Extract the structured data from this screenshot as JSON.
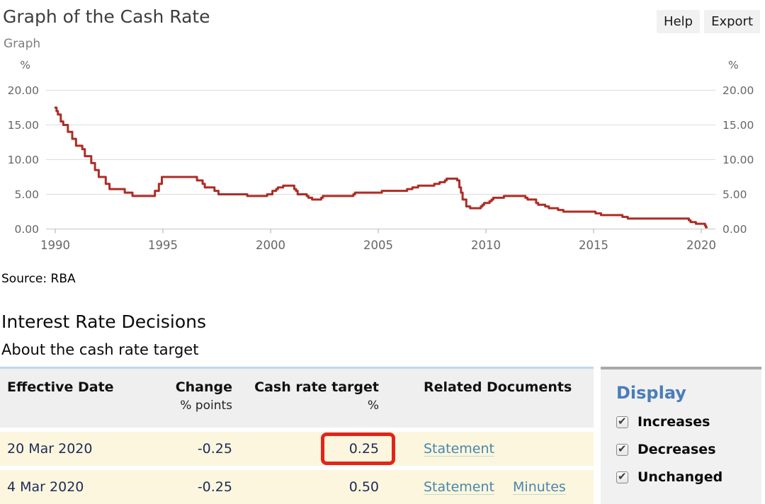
{
  "page": {
    "title": "Graph of the Cash Rate"
  },
  "toolbar": {
    "help_label": "Help",
    "export_label": "Export"
  },
  "graph_section": {
    "label": "Graph"
  },
  "chart_data": {
    "type": "line",
    "title": "Graph of the Cash Rate",
    "ylabel": "%",
    "ylabel_right": "%",
    "ylim": [
      0,
      20
    ],
    "yticks": [
      0,
      5,
      10,
      15,
      20
    ],
    "ytick_labels": [
      "0.00",
      "5.00",
      "10.00",
      "15.00",
      "20.00"
    ],
    "xticks": [
      1990,
      1995,
      2000,
      2005,
      2010,
      2015,
      2020
    ],
    "x_range": [
      1990.0,
      2020.25
    ],
    "grid": true,
    "legend": "none",
    "line_color": "#ae2c25",
    "source": "Source: RBA",
    "series": [
      {
        "name": "Cash rate target (%)",
        "step": "after",
        "points": [
          [
            "1990-01-02",
            17.5
          ],
          [
            "1990-01-23",
            17.0
          ],
          [
            "1990-02-15",
            16.5
          ],
          [
            "1990-04-04",
            15.5
          ],
          [
            "1990-05-15",
            15.0
          ],
          [
            "1990-08-02",
            14.0
          ],
          [
            "1990-10-15",
            13.0
          ],
          [
            "1990-12-18",
            12.0
          ],
          [
            "1991-04-04",
            11.5
          ],
          [
            "1991-05-16",
            10.5
          ],
          [
            "1991-09-03",
            9.5
          ],
          [
            "1991-11-06",
            8.5
          ],
          [
            "1992-01-08",
            7.5
          ],
          [
            "1992-05-06",
            6.5
          ],
          [
            "1992-07-08",
            5.75
          ],
          [
            "1993-03-23",
            5.25
          ],
          [
            "1993-08-02",
            4.75
          ],
          [
            "1994-08-17",
            5.5
          ],
          [
            "1994-10-24",
            6.5
          ],
          [
            "1994-12-14",
            7.5
          ],
          [
            "1996-07-31",
            7.0
          ],
          [
            "1996-11-06",
            6.5
          ],
          [
            "1996-12-11",
            6.0
          ],
          [
            "1997-05-23",
            5.5
          ],
          [
            "1997-07-30",
            5.0
          ],
          [
            "1998-12-02",
            4.75
          ],
          [
            "1999-11-03",
            5.0
          ],
          [
            "2000-02-02",
            5.5
          ],
          [
            "2000-04-05",
            5.75
          ],
          [
            "2000-05-03",
            6.0
          ],
          [
            "2000-08-02",
            6.25
          ],
          [
            "2001-02-07",
            5.75
          ],
          [
            "2001-03-07",
            5.5
          ],
          [
            "2001-04-04",
            5.0
          ],
          [
            "2001-09-05",
            4.75
          ],
          [
            "2001-10-03",
            4.5
          ],
          [
            "2001-12-05",
            4.25
          ],
          [
            "2002-05-08",
            4.5
          ],
          [
            "2002-06-05",
            4.75
          ],
          [
            "2003-11-05",
            5.0
          ],
          [
            "2003-12-03",
            5.25
          ],
          [
            "2005-03-02",
            5.5
          ],
          [
            "2006-05-03",
            5.75
          ],
          [
            "2006-08-02",
            6.0
          ],
          [
            "2006-11-08",
            6.25
          ],
          [
            "2007-08-08",
            6.5
          ],
          [
            "2007-11-07",
            6.75
          ],
          [
            "2008-02-05",
            7.0
          ],
          [
            "2008-03-04",
            7.25
          ],
          [
            "2008-09-02",
            7.0
          ],
          [
            "2008-10-07",
            6.0
          ],
          [
            "2008-11-04",
            5.25
          ],
          [
            "2008-12-02",
            4.25
          ],
          [
            "2009-02-03",
            3.25
          ],
          [
            "2009-04-07",
            3.0
          ],
          [
            "2009-10-06",
            3.25
          ],
          [
            "2009-11-03",
            3.5
          ],
          [
            "2009-12-01",
            3.75
          ],
          [
            "2010-03-02",
            4.0
          ],
          [
            "2010-04-06",
            4.25
          ],
          [
            "2010-05-04",
            4.5
          ],
          [
            "2010-11-02",
            4.75
          ],
          [
            "2011-11-01",
            4.5
          ],
          [
            "2011-12-06",
            4.25
          ],
          [
            "2012-05-01",
            3.75
          ],
          [
            "2012-06-05",
            3.5
          ],
          [
            "2012-10-02",
            3.25
          ],
          [
            "2012-12-04",
            3.0
          ],
          [
            "2013-05-07",
            2.75
          ],
          [
            "2013-08-06",
            2.5
          ],
          [
            "2015-02-03",
            2.25
          ],
          [
            "2015-05-05",
            2.0
          ],
          [
            "2016-05-03",
            1.75
          ],
          [
            "2016-08-02",
            1.5
          ],
          [
            "2019-06-04",
            1.25
          ],
          [
            "2019-07-02",
            1.0
          ],
          [
            "2019-10-01",
            0.75
          ],
          [
            "2020-03-04",
            0.5
          ],
          [
            "2020-03-20",
            0.25
          ]
        ]
      }
    ]
  },
  "decisions": {
    "heading": "Interest Rate Decisions",
    "subheading": "About the cash rate target",
    "table": {
      "columns": [
        {
          "label": "Effective Date",
          "sub": ""
        },
        {
          "label": "Change",
          "sub": "% points"
        },
        {
          "label": "Cash rate target",
          "sub": "%"
        },
        {
          "label": "Related Documents",
          "sub": ""
        }
      ],
      "rows": [
        {
          "date": "20 Mar 2020",
          "change": "-0.25",
          "target": "0.25",
          "documents": [
            "Statement"
          ],
          "highlight_target": true
        },
        {
          "date": "4 Mar 2020",
          "change": "-0.25",
          "target": "0.50",
          "documents": [
            "Statement",
            "Minutes"
          ],
          "highlight_target": false
        }
      ]
    }
  },
  "display_panel": {
    "title": "Display",
    "options": [
      {
        "label": "Increases",
        "checked": true
      },
      {
        "label": "Decreases",
        "checked": true
      },
      {
        "label": "Unchanged",
        "checked": true
      }
    ]
  },
  "colors": {
    "line": "#ae2c25",
    "highlight_border": "#e1251b",
    "table_top_border": "#bed9f2",
    "row_bg": "#fbf6dd",
    "row_text": "#1f2b58",
    "link": "#4a86ad",
    "panel_bg": "#f1f1f1",
    "panel_title": "#4a7db9"
  }
}
